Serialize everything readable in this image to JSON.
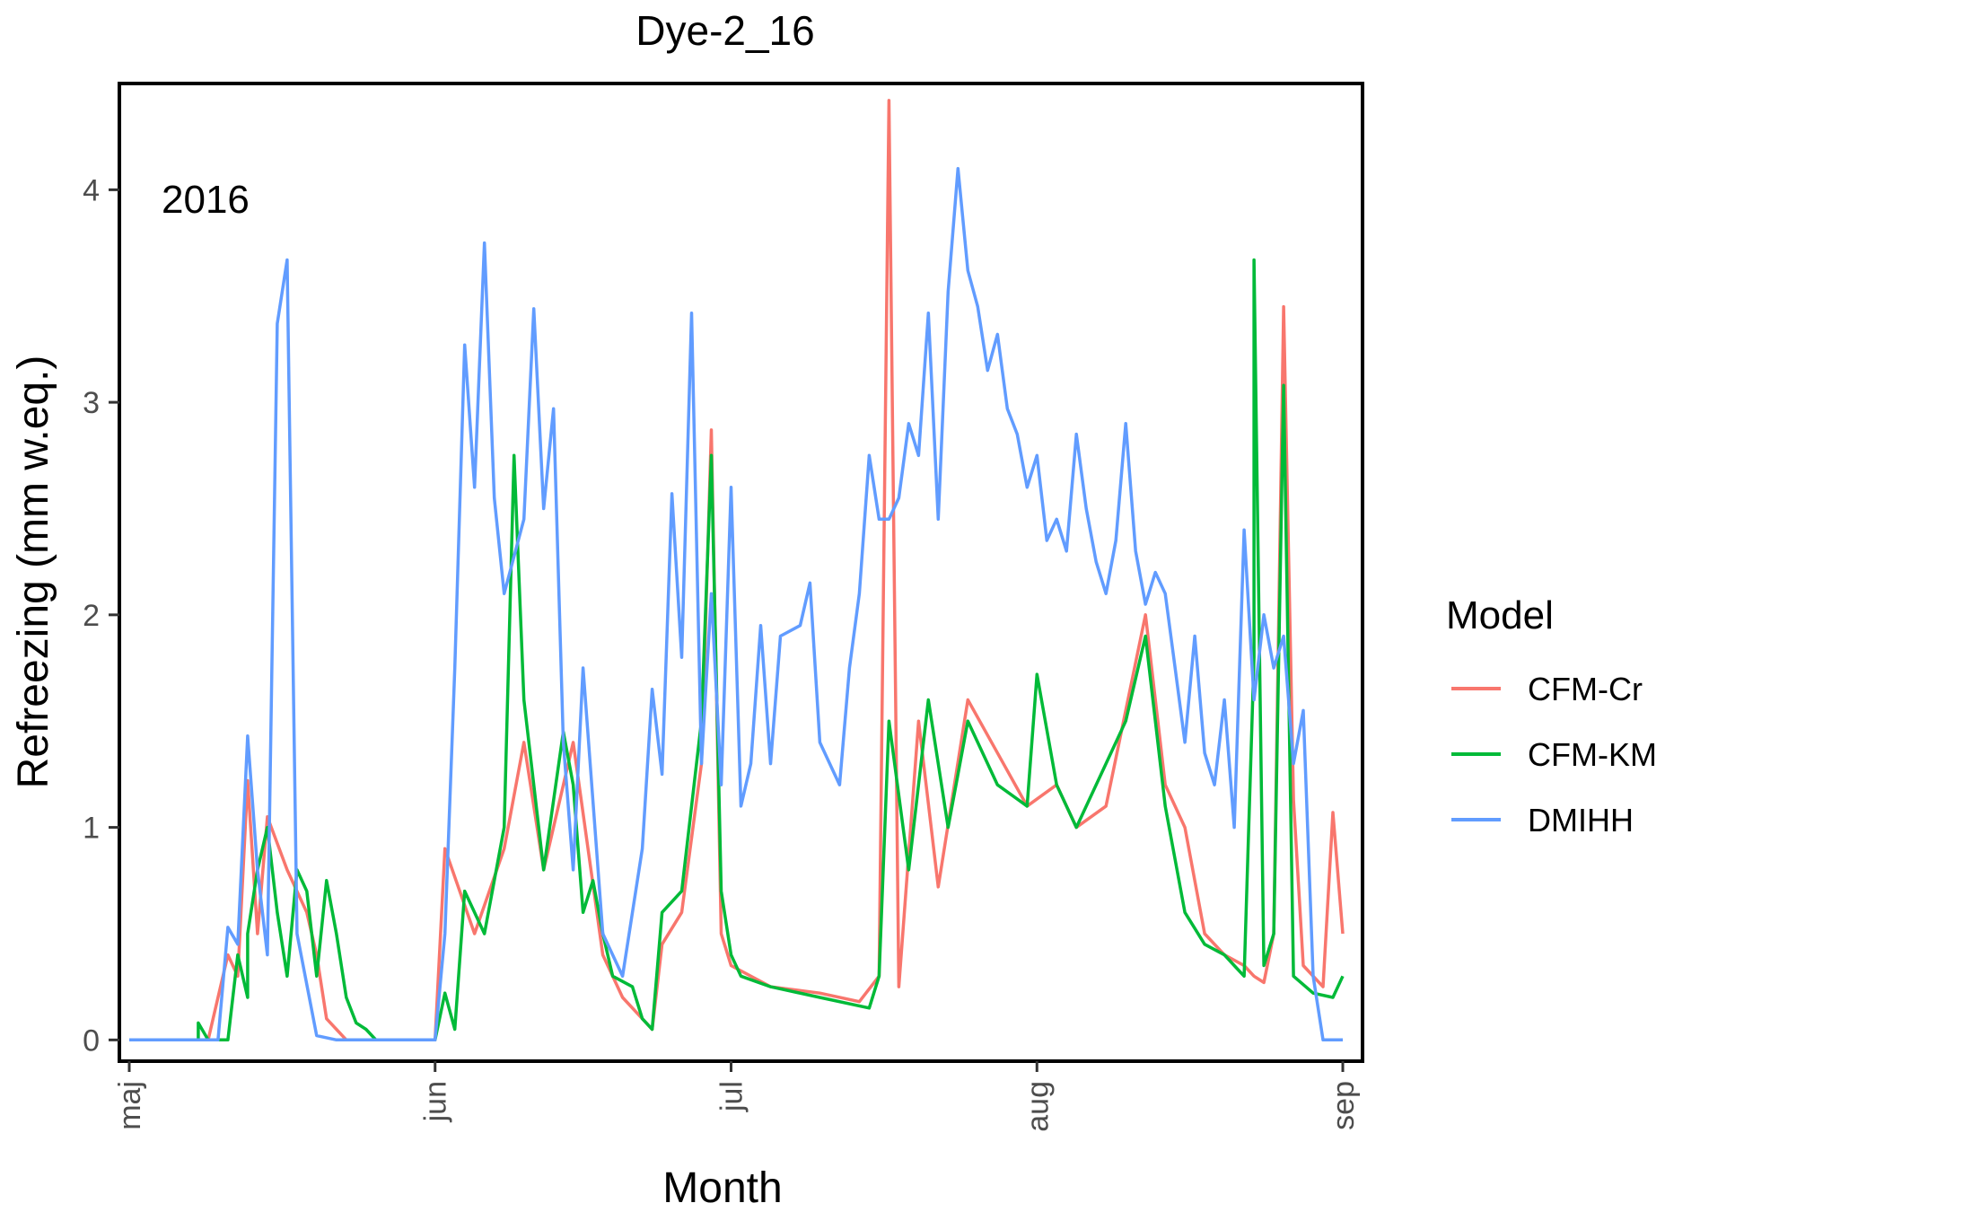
{
  "chart_data": {
    "type": "line",
    "title": "Dye-2_16",
    "annotation": "2016",
    "xlabel": "Month",
    "ylabel": "Refreezing (mm w.eq.)",
    "x_ticks": [
      "maj",
      "jun",
      "jul",
      "aug",
      "sep"
    ],
    "x_tick_dates": [
      "2016-05-01",
      "2016-06-01",
      "2016-07-01",
      "2016-08-01",
      "2016-09-01"
    ],
    "xlim": [
      "2016-04-30",
      "2016-09-03"
    ],
    "y_ticks": [
      "0",
      "1",
      "2",
      "3",
      "4"
    ],
    "ylim": [
      -0.1,
      4.5
    ],
    "grid": false,
    "legend": {
      "title": "Model",
      "placement": "right"
    },
    "series": [
      {
        "name": "CFM-Cr",
        "color": "#F8766D",
        "points": [
          [
            "2016-05-01",
            0
          ],
          [
            "2016-05-09",
            0
          ],
          [
            "2016-05-11",
            0.4
          ],
          [
            "2016-05-12",
            0.3
          ],
          [
            "2016-05-13",
            1.22
          ],
          [
            "2016-05-14",
            0.5
          ],
          [
            "2016-05-15",
            1.05
          ],
          [
            "2016-05-17",
            0.8
          ],
          [
            "2016-05-19",
            0.6
          ],
          [
            "2016-05-20",
            0.4
          ],
          [
            "2016-05-21",
            0.1
          ],
          [
            "2016-05-22",
            0.05
          ],
          [
            "2016-05-23",
            0
          ],
          [
            "2016-06-01",
            0
          ],
          [
            "2016-06-02",
            0.9
          ],
          [
            "2016-06-05",
            0.5
          ],
          [
            "2016-06-08",
            0.9
          ],
          [
            "2016-06-10",
            1.4
          ],
          [
            "2016-06-12",
            0.8
          ],
          [
            "2016-06-15",
            1.4
          ],
          [
            "2016-06-18",
            0.4
          ],
          [
            "2016-06-20",
            0.2
          ],
          [
            "2016-06-22",
            0.1
          ],
          [
            "2016-06-23",
            0.05
          ],
          [
            "2016-06-24",
            0.45
          ],
          [
            "2016-06-26",
            0.6
          ],
          [
            "2016-06-28",
            1.3
          ],
          [
            "2016-06-29",
            2.87
          ],
          [
            "2016-06-30",
            0.5
          ],
          [
            "2016-07-01",
            0.35
          ],
          [
            "2016-07-05",
            0.25
          ],
          [
            "2016-07-10",
            0.22
          ],
          [
            "2016-07-14",
            0.18
          ],
          [
            "2016-07-16",
            0.3
          ],
          [
            "2016-07-17",
            4.42
          ],
          [
            "2016-07-18",
            0.25
          ],
          [
            "2016-07-20",
            1.5
          ],
          [
            "2016-07-22",
            0.72
          ],
          [
            "2016-07-25",
            1.6
          ],
          [
            "2016-07-28",
            1.35
          ],
          [
            "2016-07-31",
            1.1
          ],
          [
            "2016-08-03",
            1.2
          ],
          [
            "2016-08-05",
            1.0
          ],
          [
            "2016-08-08",
            1.1
          ],
          [
            "2016-08-10",
            1.55
          ],
          [
            "2016-08-12",
            2.0
          ],
          [
            "2016-08-14",
            1.2
          ],
          [
            "2016-08-16",
            1.0
          ],
          [
            "2016-08-18",
            0.5
          ],
          [
            "2016-08-20",
            0.4
          ],
          [
            "2016-08-22",
            0.35
          ],
          [
            "2016-08-23",
            0.3
          ],
          [
            "2016-08-24",
            0.27
          ],
          [
            "2016-08-25",
            0.5
          ],
          [
            "2016-08-26",
            3.45
          ],
          [
            "2016-08-27",
            1.13
          ],
          [
            "2016-08-28",
            0.35
          ],
          [
            "2016-08-30",
            0.25
          ],
          [
            "2016-08-31",
            1.07
          ],
          [
            "2016-09-01",
            0.5
          ]
        ]
      },
      {
        "name": "CFM-KM",
        "color": "#00BA38",
        "points": [
          [
            "2016-05-01",
            0
          ],
          [
            "2016-05-08",
            0
          ],
          [
            "2016-05-08",
            0.08
          ],
          [
            "2016-05-09",
            0
          ],
          [
            "2016-05-11",
            0
          ],
          [
            "2016-05-12",
            0.4
          ],
          [
            "2016-05-13",
            0.2
          ],
          [
            "2016-05-13",
            0.5
          ],
          [
            "2016-05-14",
            0.8
          ],
          [
            "2016-05-15",
            1.0
          ],
          [
            "2016-05-16",
            0.6
          ],
          [
            "2016-05-17",
            0.3
          ],
          [
            "2016-05-18",
            0.8
          ],
          [
            "2016-05-19",
            0.7
          ],
          [
            "2016-05-20",
            0.3
          ],
          [
            "2016-05-21",
            0.75
          ],
          [
            "2016-05-22",
            0.5
          ],
          [
            "2016-05-23",
            0.2
          ],
          [
            "2016-05-24",
            0.08
          ],
          [
            "2016-05-25",
            0.05
          ],
          [
            "2016-05-26",
            0
          ],
          [
            "2016-06-01",
            0
          ],
          [
            "2016-06-02",
            0.22
          ],
          [
            "2016-06-03",
            0.05
          ],
          [
            "2016-06-04",
            0.7
          ],
          [
            "2016-06-06",
            0.5
          ],
          [
            "2016-06-08",
            1.0
          ],
          [
            "2016-06-09",
            2.75
          ],
          [
            "2016-06-10",
            1.6
          ],
          [
            "2016-06-12",
            0.8
          ],
          [
            "2016-06-14",
            1.45
          ],
          [
            "2016-06-15",
            1.2
          ],
          [
            "2016-06-16",
            0.6
          ],
          [
            "2016-06-17",
            0.75
          ],
          [
            "2016-06-18",
            0.5
          ],
          [
            "2016-06-19",
            0.3
          ],
          [
            "2016-06-21",
            0.25
          ],
          [
            "2016-06-22",
            0.1
          ],
          [
            "2016-06-23",
            0.05
          ],
          [
            "2016-06-24",
            0.6
          ],
          [
            "2016-06-26",
            0.7
          ],
          [
            "2016-06-28",
            1.5
          ],
          [
            "2016-06-29",
            2.75
          ],
          [
            "2016-06-30",
            0.7
          ],
          [
            "2016-07-01",
            0.4
          ],
          [
            "2016-07-02",
            0.3
          ],
          [
            "2016-07-05",
            0.25
          ],
          [
            "2016-07-10",
            0.2
          ],
          [
            "2016-07-15",
            0.15
          ],
          [
            "2016-07-16",
            0.3
          ],
          [
            "2016-07-17",
            1.5
          ],
          [
            "2016-07-19",
            0.8
          ],
          [
            "2016-07-21",
            1.6
          ],
          [
            "2016-07-23",
            1.0
          ],
          [
            "2016-07-25",
            1.5
          ],
          [
            "2016-07-28",
            1.2
          ],
          [
            "2016-07-31",
            1.1
          ],
          [
            "2016-08-01",
            1.72
          ],
          [
            "2016-08-03",
            1.2
          ],
          [
            "2016-08-05",
            1.0
          ],
          [
            "2016-08-08",
            1.3
          ],
          [
            "2016-08-10",
            1.5
          ],
          [
            "2016-08-12",
            1.9
          ],
          [
            "2016-08-14",
            1.1
          ],
          [
            "2016-08-16",
            0.6
          ],
          [
            "2016-08-18",
            0.45
          ],
          [
            "2016-08-20",
            0.4
          ],
          [
            "2016-08-21",
            0.35
          ],
          [
            "2016-08-22",
            0.3
          ],
          [
            "2016-08-23",
            1.8
          ],
          [
            "2016-08-23",
            3.67
          ],
          [
            "2016-08-24",
            0.35
          ],
          [
            "2016-08-25",
            0.5
          ],
          [
            "2016-08-26",
            3.08
          ],
          [
            "2016-08-27",
            0.3
          ],
          [
            "2016-08-29",
            0.22
          ],
          [
            "2016-08-31",
            0.2
          ],
          [
            "2016-09-01",
            0.3
          ]
        ]
      },
      {
        "name": "DMIHH",
        "color": "#619CFF",
        "points": [
          [
            "2016-05-01",
            0
          ],
          [
            "2016-05-10",
            0
          ],
          [
            "2016-05-11",
            0.53
          ],
          [
            "2016-05-12",
            0.45
          ],
          [
            "2016-05-13",
            1.43
          ],
          [
            "2016-05-14",
            0.8
          ],
          [
            "2016-05-15",
            0.4
          ],
          [
            "2016-05-16",
            3.37
          ],
          [
            "2016-05-17",
            3.67
          ],
          [
            "2016-05-18",
            0.5
          ],
          [
            "2016-05-20",
            0.02
          ],
          [
            "2016-05-22",
            0
          ],
          [
            "2016-06-01",
            0
          ],
          [
            "2016-06-02",
            0.5
          ],
          [
            "2016-06-03",
            1.75
          ],
          [
            "2016-06-04",
            3.27
          ],
          [
            "2016-06-05",
            2.6
          ],
          [
            "2016-06-06",
            3.75
          ],
          [
            "2016-06-07",
            2.55
          ],
          [
            "2016-06-08",
            2.1
          ],
          [
            "2016-06-10",
            2.45
          ],
          [
            "2016-06-11",
            3.44
          ],
          [
            "2016-06-12",
            2.5
          ],
          [
            "2016-06-13",
            2.97
          ],
          [
            "2016-06-14",
            1.4
          ],
          [
            "2016-06-15",
            0.8
          ],
          [
            "2016-06-16",
            1.75
          ],
          [
            "2016-06-18",
            0.5
          ],
          [
            "2016-06-20",
            0.3
          ],
          [
            "2016-06-22",
            0.9
          ],
          [
            "2016-06-23",
            1.65
          ],
          [
            "2016-06-24",
            1.25
          ],
          [
            "2016-06-25",
            2.57
          ],
          [
            "2016-06-26",
            1.8
          ],
          [
            "2016-06-27",
            3.42
          ],
          [
            "2016-06-28",
            1.3
          ],
          [
            "2016-06-29",
            2.1
          ],
          [
            "2016-06-30",
            1.2
          ],
          [
            "2016-07-01",
            2.6
          ],
          [
            "2016-07-02",
            1.1
          ],
          [
            "2016-07-03",
            1.3
          ],
          [
            "2016-07-04",
            1.95
          ],
          [
            "2016-07-05",
            1.3
          ],
          [
            "2016-07-06",
            1.9
          ],
          [
            "2016-07-08",
            1.95
          ],
          [
            "2016-07-09",
            2.15
          ],
          [
            "2016-07-10",
            1.4
          ],
          [
            "2016-07-12",
            1.2
          ],
          [
            "2016-07-13",
            1.75
          ],
          [
            "2016-07-14",
            2.1
          ],
          [
            "2016-07-15",
            2.75
          ],
          [
            "2016-07-16",
            2.45
          ],
          [
            "2016-07-17",
            2.45
          ],
          [
            "2016-07-18",
            2.55
          ],
          [
            "2016-07-19",
            2.9
          ],
          [
            "2016-07-20",
            2.75
          ],
          [
            "2016-07-21",
            3.42
          ],
          [
            "2016-07-22",
            2.45
          ],
          [
            "2016-07-23",
            3.52
          ],
          [
            "2016-07-24",
            4.1
          ],
          [
            "2016-07-25",
            3.62
          ],
          [
            "2016-07-26",
            3.45
          ],
          [
            "2016-07-27",
            3.15
          ],
          [
            "2016-07-28",
            3.32
          ],
          [
            "2016-07-29",
            2.97
          ],
          [
            "2016-07-30",
            2.85
          ],
          [
            "2016-07-31",
            2.6
          ],
          [
            "2016-08-01",
            2.75
          ],
          [
            "2016-08-02",
            2.35
          ],
          [
            "2016-08-03",
            2.45
          ],
          [
            "2016-08-04",
            2.3
          ],
          [
            "2016-08-05",
            2.85
          ],
          [
            "2016-08-06",
            2.5
          ],
          [
            "2016-08-07",
            2.25
          ],
          [
            "2016-08-08",
            2.1
          ],
          [
            "2016-08-09",
            2.35
          ],
          [
            "2016-08-10",
            2.9
          ],
          [
            "2016-08-11",
            2.3
          ],
          [
            "2016-08-12",
            2.05
          ],
          [
            "2016-08-13",
            2.2
          ],
          [
            "2016-08-14",
            2.1
          ],
          [
            "2016-08-15",
            1.75
          ],
          [
            "2016-08-16",
            1.4
          ],
          [
            "2016-08-17",
            1.9
          ],
          [
            "2016-08-18",
            1.35
          ],
          [
            "2016-08-19",
            1.2
          ],
          [
            "2016-08-20",
            1.6
          ],
          [
            "2016-08-21",
            1.0
          ],
          [
            "2016-08-22",
            2.4
          ],
          [
            "2016-08-23",
            1.6
          ],
          [
            "2016-08-24",
            2.0
          ],
          [
            "2016-08-25",
            1.75
          ],
          [
            "2016-08-26",
            1.9
          ],
          [
            "2016-08-27",
            1.3
          ],
          [
            "2016-08-28",
            1.55
          ],
          [
            "2016-08-29",
            0.3
          ],
          [
            "2016-08-30",
            0
          ],
          [
            "2016-09-01",
            0
          ]
        ]
      }
    ]
  }
}
